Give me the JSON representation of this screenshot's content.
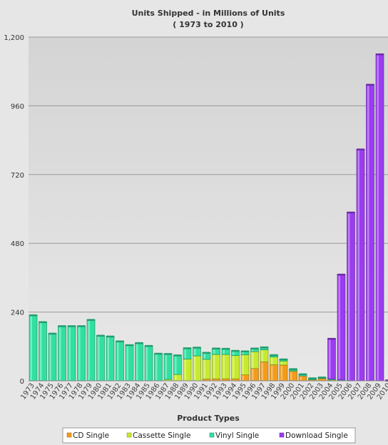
{
  "chart_data": {
    "type": "bar",
    "stacked": true,
    "title": "Units Shipped - in Millions of Units",
    "subtitle": "( 1973 to 2010 )",
    "xlabel": "Product Types",
    "ylabel": "",
    "ylim": [
      0,
      1200
    ],
    "yticks": [
      "0",
      "240",
      "480",
      "720",
      "960",
      "1,200"
    ],
    "ytick_values": [
      0,
      240,
      480,
      720,
      960,
      1200
    ],
    "grid": true,
    "legend_position": "bottom",
    "categories": [
      "1973",
      "1974",
      "1975",
      "1976",
      "1977",
      "1978",
      "1979",
      "1980",
      "1981",
      "1982",
      "1983",
      "1984",
      "1985",
      "1986",
      "1987",
      "1988",
      "1989",
      "1990",
      "1991",
      "1992",
      "1993",
      "1994",
      "1995",
      "1996",
      "1997",
      "1998",
      "1999",
      "2000",
      "2001",
      "2002",
      "2003",
      "2004",
      "2005",
      "2006",
      "2007",
      "2008",
      "2009",
      "2010"
    ],
    "series": [
      {
        "name": "CD Single",
        "color": "#f39c1a",
        "values": [
          0,
          0,
          0,
          0,
          0,
          0,
          0,
          0,
          0,
          0,
          0,
          0,
          0,
          0,
          0,
          0,
          0,
          0,
          6,
          7,
          7,
          7,
          21,
          43,
          66,
          56,
          55,
          34,
          17,
          4,
          8,
          3,
          0,
          0,
          0,
          0,
          0,
          0
        ]
      },
      {
        "name": "Cassette Single",
        "color": "#c6ea2f",
        "values": [
          0,
          0,
          0,
          0,
          0,
          0,
          0,
          0,
          0,
          0,
          0,
          0,
          0,
          0,
          5,
          22,
          76,
          87,
          69,
          85,
          85,
          81,
          70,
          59,
          42,
          27,
          14,
          1,
          0,
          0,
          0,
          0,
          0,
          0,
          0,
          0,
          0,
          0
        ]
      },
      {
        "name": "Vinyl Single",
        "color": "#30e0a0",
        "values": [
          228,
          204,
          164,
          190,
          190,
          190,
          212,
          157,
          154,
          137,
          124,
          131,
          121,
          94,
          88,
          66,
          37,
          28,
          22,
          20,
          19,
          16,
          11,
          10,
          8,
          6,
          5,
          5,
          5,
          4,
          3,
          3,
          3,
          0,
          0,
          0,
          0,
          0
        ]
      },
      {
        "name": "Download Single",
        "color": "#9a3cf0",
        "values": [
          0,
          0,
          0,
          0,
          0,
          0,
          0,
          0,
          0,
          0,
          0,
          0,
          0,
          0,
          0,
          0,
          0,
          0,
          0,
          0,
          0,
          0,
          0,
          0,
          0,
          0,
          0,
          0,
          0,
          0,
          0,
          140,
          367,
          587,
          807,
          1033,
          1139,
          1
        ]
      }
    ]
  }
}
